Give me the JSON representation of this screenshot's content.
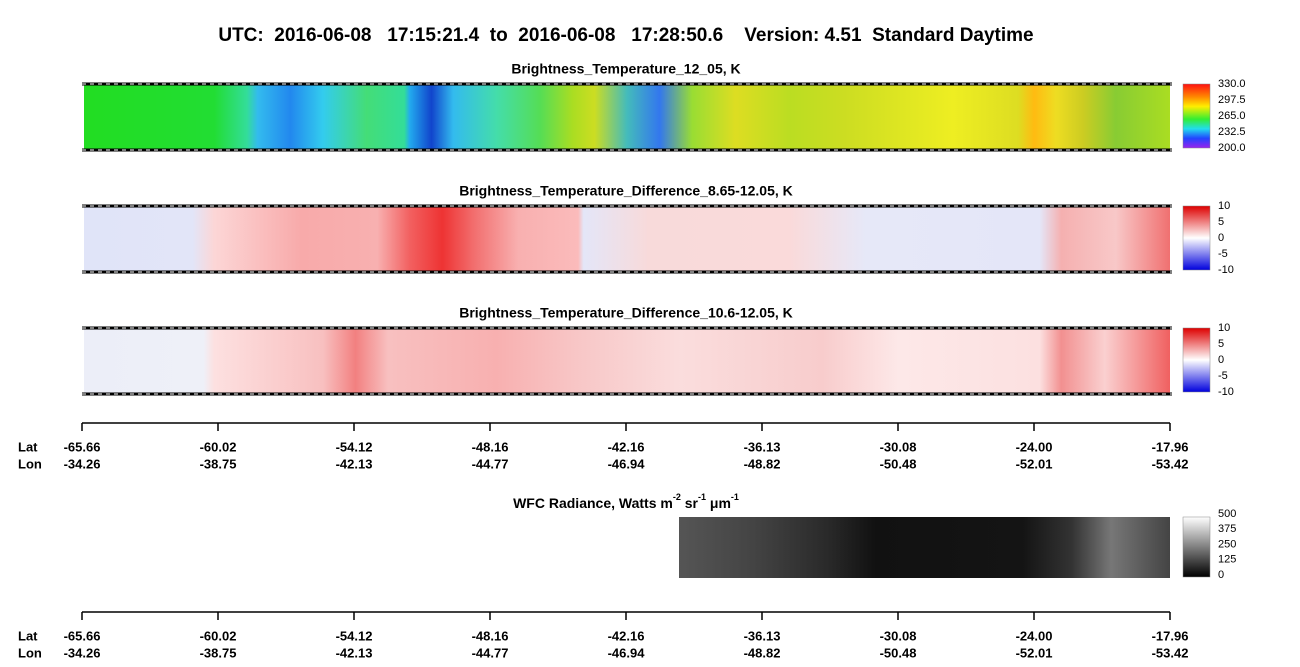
{
  "title": "UTC:  2016-06-08   17:15:21.4  to  2016-06-08   17:28:50.6    Version: 4.51  Standard Daytime",
  "panels": [
    {
      "title": "Brightness_Temperature_12_05, K",
      "colorbar_labels": [
        "330.0",
        "297.5",
        "265.0",
        "232.5",
        "200.0"
      ]
    },
    {
      "title": "Brightness_Temperature_Difference_8.65-12.05, K",
      "colorbar_labels": [
        "10",
        "5",
        "0",
        "-5",
        "-10"
      ]
    },
    {
      "title": "Brightness_Temperature_Difference_10.6-12.05, K",
      "colorbar_labels": [
        "10",
        "5",
        "0",
        "-5",
        "-10"
      ]
    }
  ],
  "axis": {
    "lat_label": "Lat",
    "lon_label": "Lon",
    "lat": [
      "-65.66",
      "-60.02",
      "-54.12",
      "-48.16",
      "-42.16",
      "-36.13",
      "-30.08",
      "-24.00",
      "-17.96"
    ],
    "lon": [
      "-34.26",
      "-38.75",
      "-42.13",
      "-44.77",
      "-46.94",
      "-48.82",
      "-50.48",
      "-52.01",
      "-53.42"
    ]
  },
  "wfc": {
    "title": {
      "text": "WFC Radiance, Watts m",
      "exp1": "-2",
      "unit2": " sr",
      "exp2": "-1",
      "unit3": " μm",
      "exp3": "-1"
    },
    "colorbar_labels": [
      "500",
      "375",
      "250",
      "125",
      "0"
    ]
  },
  "axis2": {
    "lat_label": "Lat",
    "lon_label": "Lon",
    "lat": [
      "-65.66",
      "-60.02",
      "-54.12",
      "-48.16",
      "-42.16",
      "-36.13",
      "-30.08",
      "-24.00",
      "-17.96"
    ],
    "lon": [
      "-34.26",
      "-38.75",
      "-42.13",
      "-44.77",
      "-46.94",
      "-48.82",
      "-50.48",
      "-52.01",
      "-53.42"
    ]
  }
}
